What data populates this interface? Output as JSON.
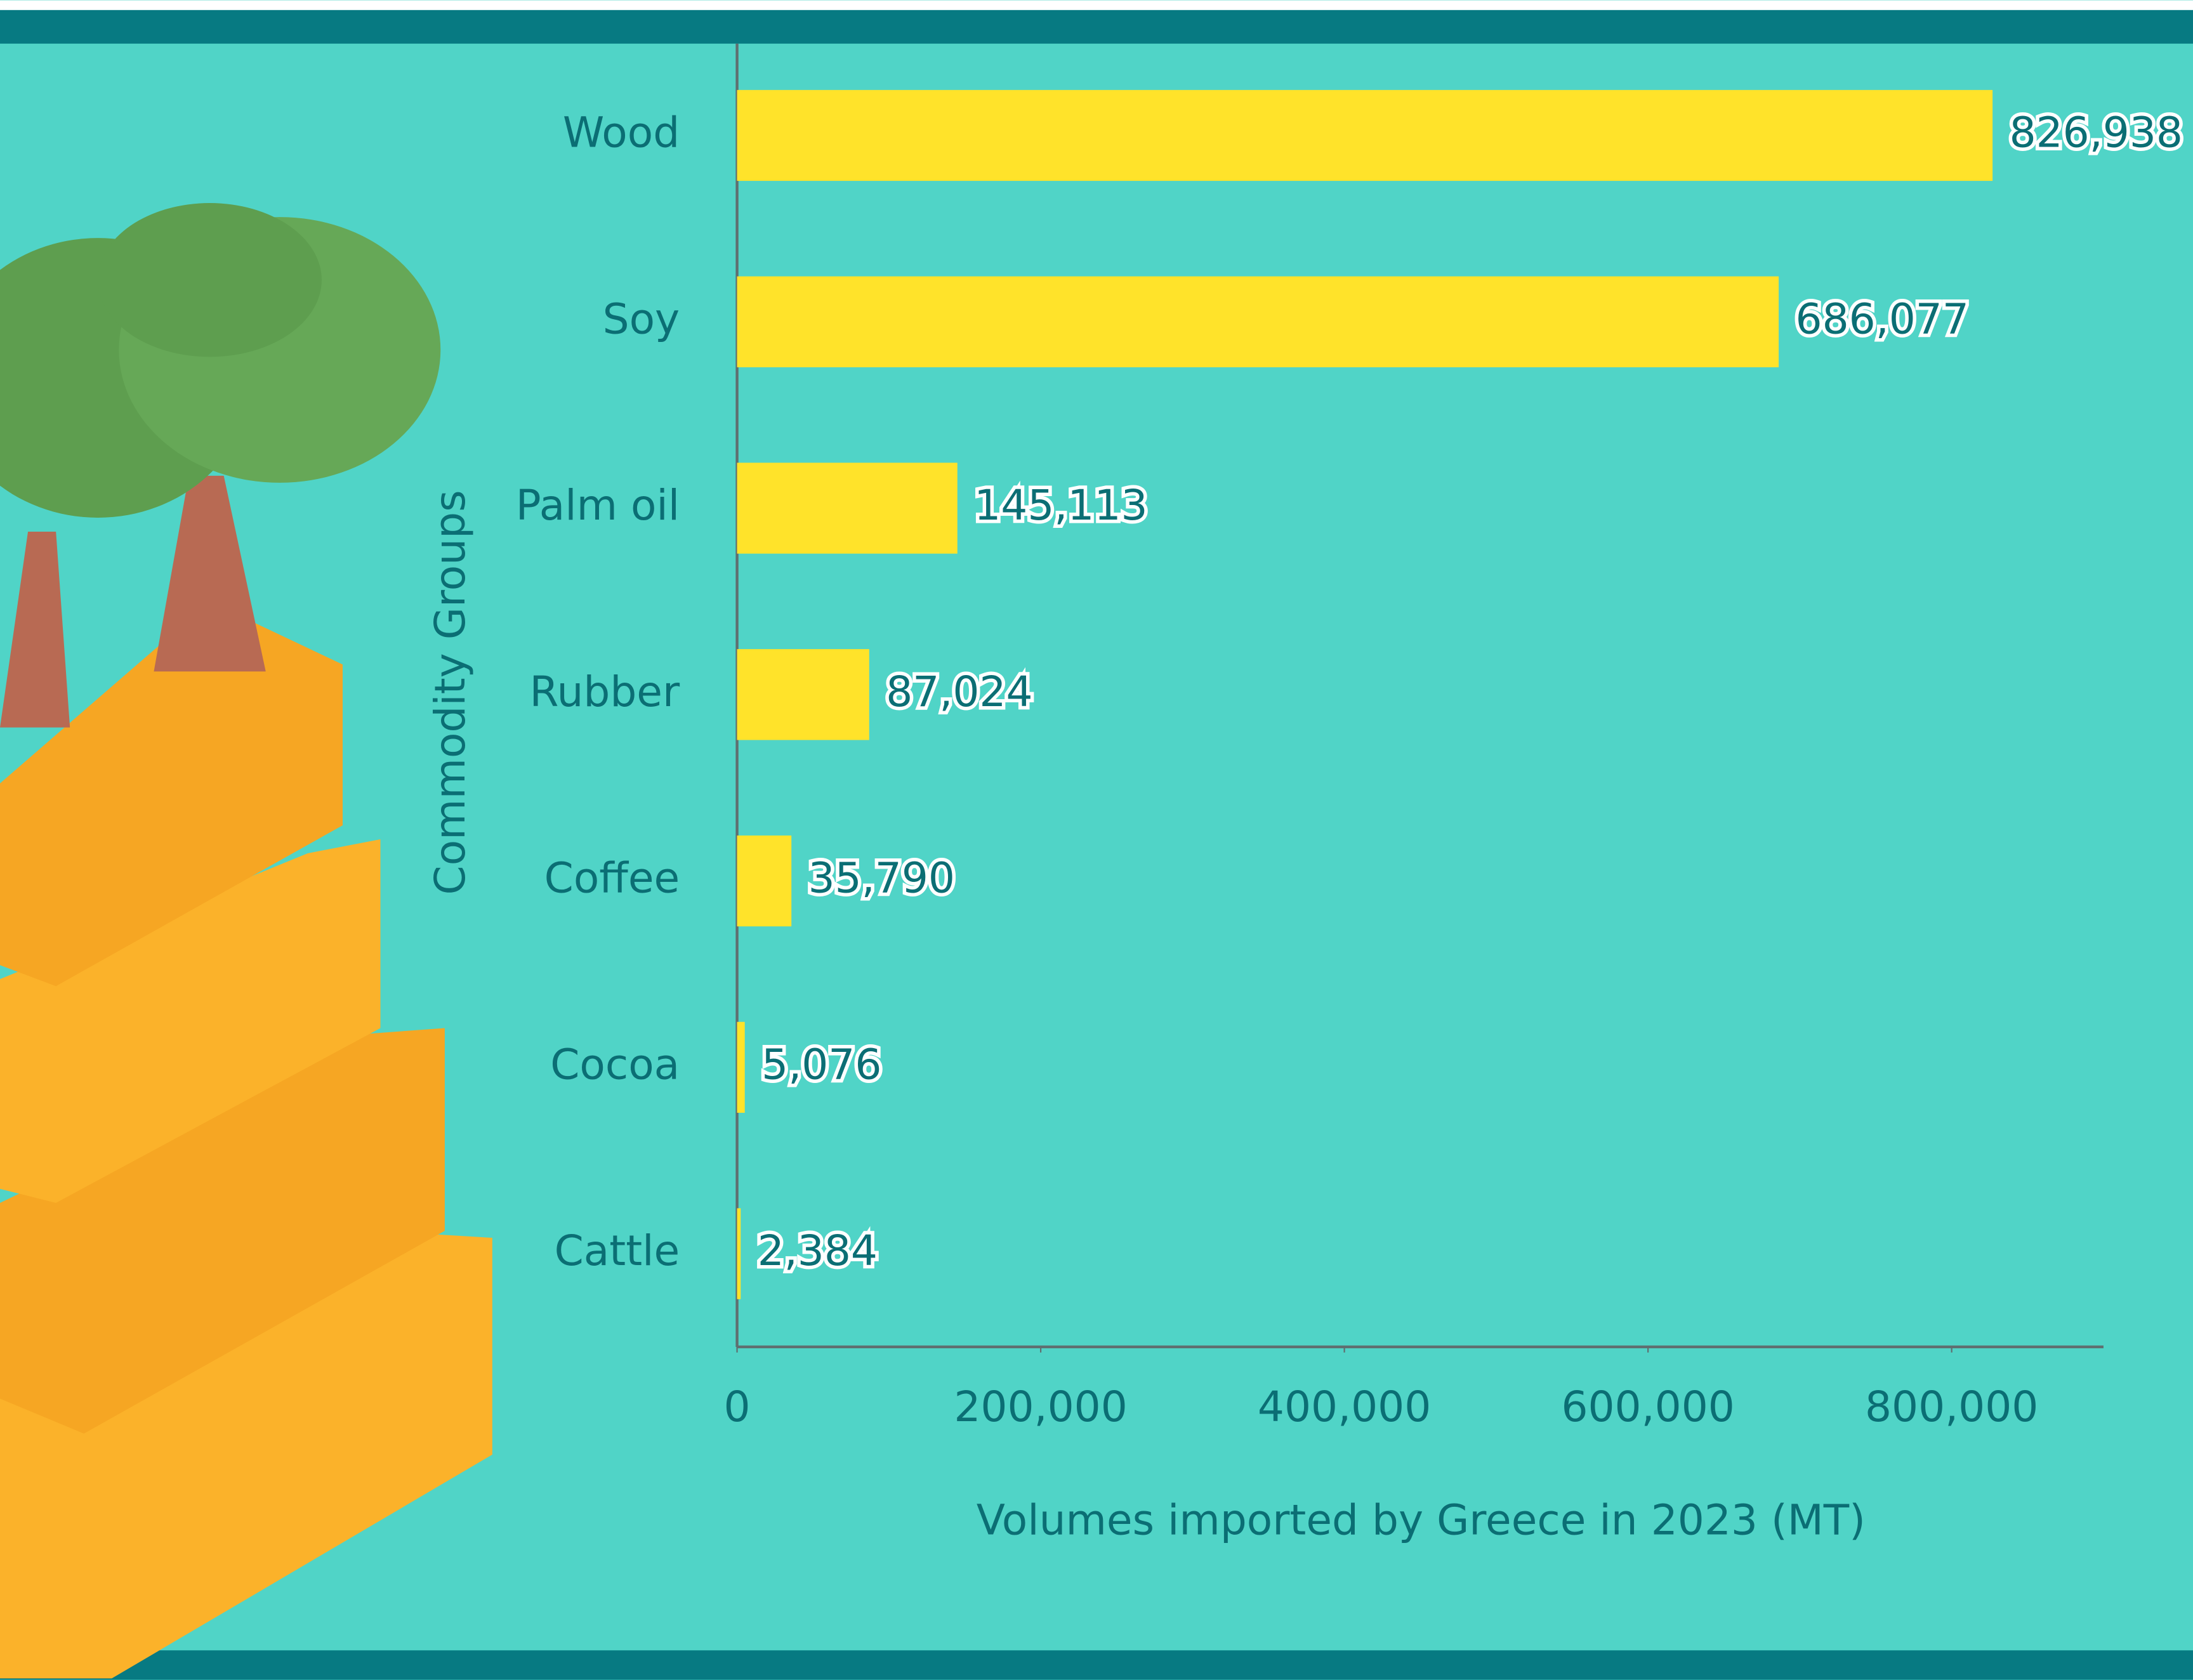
{
  "chart_data": {
    "type": "bar",
    "orientation": "horizontal",
    "x_label": "Volumes imported by Greece in 2023 (MT)",
    "y_label": "Commodity Groups",
    "categories": [
      "Wood",
      "Soy",
      "Palm oil",
      "Rubber",
      "Coffee",
      "Cocoa",
      "Cattle"
    ],
    "values": [
      826938,
      686077,
      145113,
      87024,
      35790,
      5076,
      2384
    ],
    "value_labels": [
      "826,938",
      "686,077",
      "145,113",
      "87,024",
      "35,790",
      "5,076",
      "2,384"
    ],
    "color": "#ffe32a",
    "xlim": [
      0,
      900000
    ],
    "xticks": [
      0,
      {
        "value": 200000,
        "label": "200,000"
      },
      {
        "value": 400000,
        "label": "400,000"
      },
      {
        "value": 600000,
        "label": "600,000"
      },
      {
        "value": 800000,
        "label": "800,000"
      }
    ],
    "grid": false
  }
}
